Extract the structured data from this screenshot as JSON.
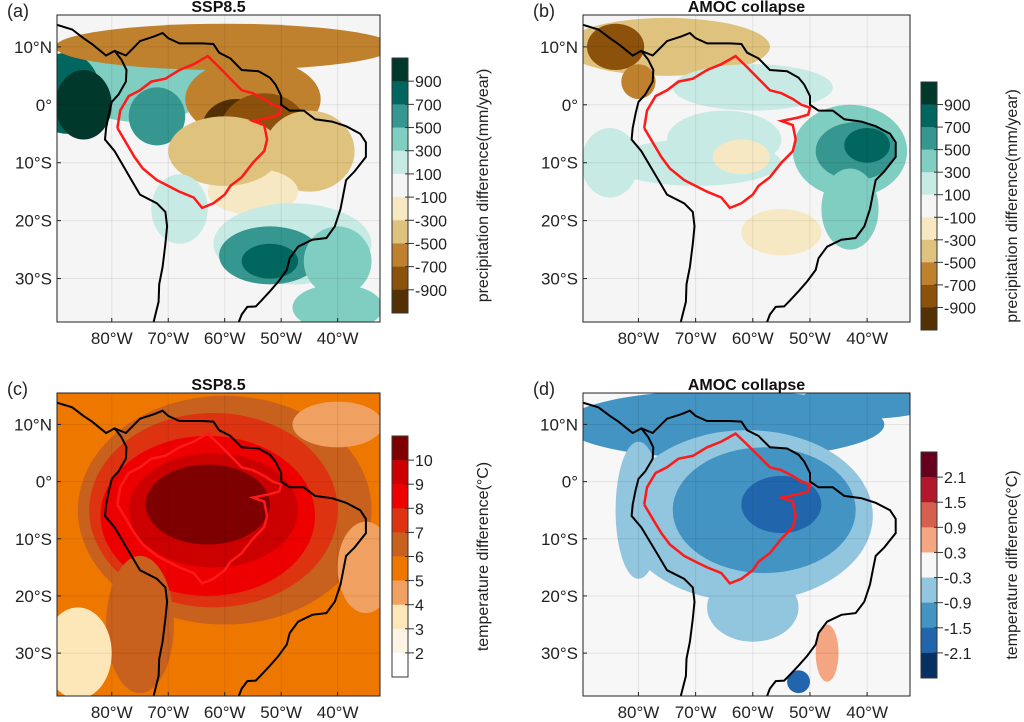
{
  "lat_ticks": [
    "10°N",
    "0°",
    "10°S",
    "20°S",
    "30°S"
  ],
  "lon_ticks": [
    "80°W",
    "70°W",
    "60°W",
    "50°W",
    "40°W"
  ],
  "colorbars": {
    "precip": {
      "label": "precipitation difference(mm/year)",
      "ticks": [
        "900",
        "700",
        "500",
        "300",
        "100",
        "-100",
        "-300",
        "-500",
        "-700",
        "-900"
      ],
      "colors": [
        "#00392c",
        "#01665e",
        "#35978f",
        "#80cdc1",
        "#c7eae5",
        "#f5f5f5",
        "#f6e8c3",
        "#dfc27d",
        "#bf812d",
        "#8c510a",
        "#543005"
      ]
    },
    "temp_ssp": {
      "label": "temperature difference(°C)",
      "ticks": [
        "10",
        "9",
        "8",
        "7",
        "6",
        "5",
        "4",
        "3",
        "2"
      ],
      "colors": [
        "#7f0000",
        "#cc0000",
        "#ee0000",
        "#dd3311",
        "#c8601e",
        "#ee7700",
        "#f0a060",
        "#fde6b8",
        "#fdf3e6",
        "#ffffff"
      ]
    },
    "temp_amoc": {
      "label": "temperature difference(°C)",
      "ticks": [
        "2.1",
        "1.5",
        "0.9",
        "0.3",
        "-0.3",
        "-0.9",
        "-1.5",
        "-2.1"
      ],
      "colors": [
        "#67001f",
        "#b2182b",
        "#d6604d",
        "#f4a582",
        "#f7f7f7",
        "#92c5de",
        "#4393c3",
        "#2166ac",
        "#053061"
      ]
    }
  },
  "panels": [
    {
      "label": "(a)",
      "title": "SSP8.5",
      "colorbar": "precip"
    },
    {
      "label": "(b)",
      "title": "AMOC collapse",
      "colorbar": "precip"
    },
    {
      "label": "(c)",
      "title": "SSP8.5",
      "colorbar": "temp_ssp"
    },
    {
      "label": "(d)",
      "title": "AMOC collapse",
      "colorbar": "temp_amoc"
    }
  ],
  "colors": {
    "coastline": "#000000",
    "amazon_boundary": "#ff1a1a"
  }
}
